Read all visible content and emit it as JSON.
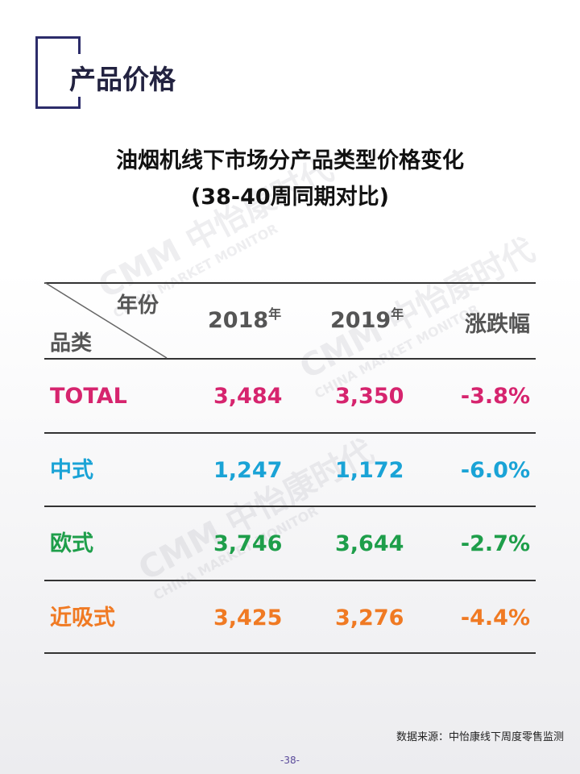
{
  "header": {
    "title": "产品价格"
  },
  "table": {
    "title": "油烟机线下市场分产品类型价格变化",
    "subtitle": "(38-40周同期对比)",
    "corner": {
      "top": "年份",
      "bottom": "品类"
    },
    "columns": [
      {
        "label": "2018",
        "suffix": "年"
      },
      {
        "label": "2019",
        "suffix": "年"
      },
      {
        "label": "涨跌幅"
      }
    ],
    "rows": [
      [
        "TOTAL",
        "3,484",
        "3,350",
        "-3.8%"
      ],
      [
        "中式",
        "1,247",
        "1,172",
        "-6.0%"
      ],
      [
        "欧式",
        "3,746",
        "3,644",
        "-2.7%"
      ],
      [
        "近吸式",
        "3,425",
        "3,276",
        "-4.4%"
      ]
    ]
  },
  "watermark": {
    "brand": "中怡康时代",
    "english": "CHINA MARKET MONITOR",
    "logo": "CMM"
  },
  "footer": {
    "source": "数据来源：中怡康线下周度零售监测",
    "page": "-38-"
  }
}
